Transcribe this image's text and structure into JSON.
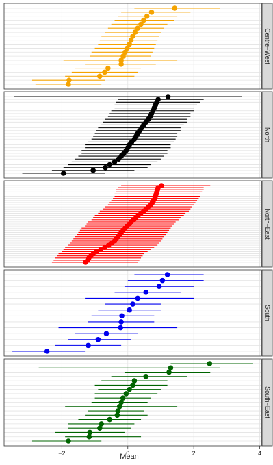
{
  "chart_data": {
    "type": "scatter",
    "subtype": "faceted dot plot with horizontal interval bars",
    "xlabel": "Mean",
    "xlim": [
      -3.75,
      4.05
    ],
    "x_ticks": [
      -2,
      0,
      2,
      4
    ],
    "x_tick_labels": [
      "−2",
      "0",
      "2",
      "4"
    ],
    "grid": true,
    "facets": [
      {
        "name": "Centre−West",
        "color": "#f5a300",
        "points": [
          {
            "mean": 1.42,
            "lo": 0.2,
            "hi": 2.8
          },
          {
            "mean": 0.72,
            "lo": -0.2,
            "hi": 1.9
          },
          {
            "mean": 0.58,
            "lo": -0.3,
            "hi": 1.5
          },
          {
            "mean": 0.48,
            "lo": -0.4,
            "hi": 1.4
          },
          {
            "mean": 0.4,
            "lo": -0.5,
            "hi": 1.2
          },
          {
            "mean": 0.3,
            "lo": -0.6,
            "hi": 1.1
          },
          {
            "mean": 0.22,
            "lo": -0.7,
            "hi": 1.0
          },
          {
            "mean": 0.15,
            "lo": -0.8,
            "hi": 0.95
          },
          {
            "mean": 0.1,
            "lo": -0.85,
            "hi": 0.9
          },
          {
            "mean": 0.05,
            "lo": -0.9,
            "hi": 0.85
          },
          {
            "mean": -0.02,
            "lo": -1.0,
            "hi": 0.8
          },
          {
            "mean": -0.08,
            "lo": -1.1,
            "hi": 0.75
          },
          {
            "mean": -0.14,
            "lo": -1.15,
            "hi": 0.7
          },
          {
            "mean": -0.2,
            "lo": -1.95,
            "hi": 1.5
          },
          {
            "mean": -0.2,
            "lo": -1.3,
            "hi": 0.85
          },
          {
            "mean": -0.6,
            "lo": -1.6,
            "hi": 0.4
          },
          {
            "mean": -0.7,
            "lo": -1.7,
            "hi": 0.3
          },
          {
            "mean": -0.85,
            "lo": -1.9,
            "hi": 0.2
          },
          {
            "mean": -1.78,
            "lo": -2.9,
            "hi": -0.7
          },
          {
            "mean": -1.8,
            "lo": -2.8,
            "hi": -0.8
          }
        ]
      },
      {
        "name": "North",
        "color": "#000000",
        "points": [
          {
            "mean": 1.22,
            "lo": -3.45,
            "hi": 3.45
          },
          {
            "mean": 0.92,
            "lo": -0.3,
            "hi": 2.3
          },
          {
            "mean": 0.88,
            "lo": -0.35,
            "hi": 2.2
          },
          {
            "mean": 0.84,
            "lo": -0.4,
            "hi": 2.1
          },
          {
            "mean": 0.8,
            "lo": -0.4,
            "hi": 2.0
          },
          {
            "mean": 0.76,
            "lo": -0.5,
            "hi": 2.0
          },
          {
            "mean": 0.72,
            "lo": -0.55,
            "hi": 1.9
          },
          {
            "mean": 0.68,
            "lo": -0.6,
            "hi": 1.9
          },
          {
            "mean": 0.62,
            "lo": -0.7,
            "hi": 1.8
          },
          {
            "mean": 0.55,
            "lo": -0.75,
            "hi": 1.8
          },
          {
            "mean": 0.48,
            "lo": -0.8,
            "hi": 1.7
          },
          {
            "mean": 0.42,
            "lo": -0.9,
            "hi": 1.6
          },
          {
            "mean": 0.36,
            "lo": -0.95,
            "hi": 1.6
          },
          {
            "mean": 0.3,
            "lo": -1.0,
            "hi": 1.5
          },
          {
            "mean": 0.25,
            "lo": -1.05,
            "hi": 1.5
          },
          {
            "mean": 0.2,
            "lo": -1.1,
            "hi": 1.45
          },
          {
            "mean": 0.12,
            "lo": -1.2,
            "hi": 1.4
          },
          {
            "mean": 0.05,
            "lo": -1.3,
            "hi": 1.3
          },
          {
            "mean": 0.0,
            "lo": -1.3,
            "hi": 1.3
          },
          {
            "mean": -0.05,
            "lo": -1.4,
            "hi": 1.2
          },
          {
            "mean": -0.12,
            "lo": -1.4,
            "hi": 1.2
          },
          {
            "mean": -0.2,
            "lo": -1.5,
            "hi": 1.1
          },
          {
            "mean": -0.28,
            "lo": -1.6,
            "hi": 1.0
          },
          {
            "mean": -0.4,
            "lo": -1.7,
            "hi": 0.9
          },
          {
            "mean": -0.55,
            "lo": -1.8,
            "hi": 0.7
          },
          {
            "mean": -0.68,
            "lo": -1.95,
            "hi": 0.6
          },
          {
            "mean": -1.05,
            "lo": -2.3,
            "hi": 0.2
          },
          {
            "mean": -1.95,
            "lo": -3.2,
            "hi": -0.7
          }
        ]
      },
      {
        "name": "North−East",
        "color": "#ff0000",
        "points": [
          {
            "mean": 1.02,
            "lo": -0.2,
            "hi": 2.5
          },
          {
            "mean": 0.92,
            "lo": -0.3,
            "hi": 2.3
          },
          {
            "mean": 0.9,
            "lo": -0.35,
            "hi": 2.3
          },
          {
            "mean": 0.88,
            "lo": -0.35,
            "hi": 2.25
          },
          {
            "mean": 0.86,
            "lo": -0.4,
            "hi": 2.2
          },
          {
            "mean": 0.84,
            "lo": -0.4,
            "hi": 2.2
          },
          {
            "mean": 0.82,
            "lo": -0.45,
            "hi": 2.15
          },
          {
            "mean": 0.78,
            "lo": -0.5,
            "hi": 2.1
          },
          {
            "mean": 0.74,
            "lo": -0.55,
            "hi": 2.05
          },
          {
            "mean": 0.7,
            "lo": -0.6,
            "hi": 2.0
          },
          {
            "mean": 0.62,
            "lo": -0.7,
            "hi": 1.95
          },
          {
            "mean": 0.55,
            "lo": -0.75,
            "hi": 1.9
          },
          {
            "mean": 0.48,
            "lo": -0.85,
            "hi": 1.85
          },
          {
            "mean": 0.4,
            "lo": -0.9,
            "hi": 1.75
          },
          {
            "mean": 0.32,
            "lo": -1.0,
            "hi": 1.7
          },
          {
            "mean": 0.25,
            "lo": -1.05,
            "hi": 1.6
          },
          {
            "mean": 0.18,
            "lo": -1.1,
            "hi": 1.55
          },
          {
            "mean": 0.1,
            "lo": -1.2,
            "hi": 1.45
          },
          {
            "mean": 0.05,
            "lo": -1.25,
            "hi": 1.4
          },
          {
            "mean": -0.02,
            "lo": -1.3,
            "hi": 1.35
          },
          {
            "mean": -0.08,
            "lo": -1.4,
            "hi": 1.3
          },
          {
            "mean": -0.14,
            "lo": -1.45,
            "hi": 1.25
          },
          {
            "mean": -0.2,
            "lo": -1.5,
            "hi": 1.2
          },
          {
            "mean": -0.25,
            "lo": -1.55,
            "hi": 1.15
          },
          {
            "mean": -0.3,
            "lo": -1.6,
            "hi": 1.1
          },
          {
            "mean": -0.35,
            "lo": -1.65,
            "hi": 1.05
          },
          {
            "mean": -0.4,
            "lo": -1.7,
            "hi": 1.0
          },
          {
            "mean": -0.48,
            "lo": -1.75,
            "hi": 0.95
          },
          {
            "mean": -0.58,
            "lo": -1.8,
            "hi": 0.9
          },
          {
            "mean": -0.7,
            "lo": -1.9,
            "hi": 0.8
          },
          {
            "mean": -0.82,
            "lo": -1.95,
            "hi": 0.7
          },
          {
            "mean": -0.95,
            "lo": -2.0,
            "hi": 0.6
          },
          {
            "mean": -1.05,
            "lo": -2.1,
            "hi": 0.5
          },
          {
            "mean": -1.12,
            "lo": -2.15,
            "hi": 0.45
          },
          {
            "mean": -1.18,
            "lo": -2.2,
            "hi": 0.4
          },
          {
            "mean": -1.22,
            "lo": -2.25,
            "hi": 0.35
          },
          {
            "mean": -1.28,
            "lo": -2.3,
            "hi": 0.3
          }
        ]
      },
      {
        "name": "South",
        "color": "#0000ee",
        "points": [
          {
            "mean": 1.2,
            "lo": 0.2,
            "hi": 2.3
          },
          {
            "mean": 1.05,
            "lo": 0.0,
            "hi": 2.3
          },
          {
            "mean": 0.95,
            "lo": -0.1,
            "hi": 2.0
          },
          {
            "mean": 0.55,
            "lo": -0.4,
            "hi": 1.6
          },
          {
            "mean": 0.3,
            "lo": -1.3,
            "hi": 2.0
          },
          {
            "mean": 0.15,
            "lo": -0.7,
            "hi": 1.0
          },
          {
            "mean": 0.05,
            "lo": -0.9,
            "hi": 1.0
          },
          {
            "mean": -0.18,
            "lo": -1.1,
            "hi": 0.8
          },
          {
            "mean": -0.2,
            "lo": -1.2,
            "hi": 0.8
          },
          {
            "mean": -0.22,
            "lo": -2.1,
            "hi": 1.5
          },
          {
            "mean": -0.65,
            "lo": -1.6,
            "hi": 0.3
          },
          {
            "mean": -0.9,
            "lo": -1.8,
            "hi": 0.1
          },
          {
            "mean": -1.2,
            "lo": -2.2,
            "hi": -0.2
          },
          {
            "mean": -2.45,
            "lo": -3.5,
            "hi": -1.3
          }
        ]
      },
      {
        "name": "South−East",
        "color": "#006400",
        "points": [
          {
            "mean": 2.48,
            "lo": 1.3,
            "hi": 3.8
          },
          {
            "mean": 1.3,
            "lo": -2.7,
            "hi": 2.8
          },
          {
            "mean": 1.25,
            "lo": -0.1,
            "hi": 2.5
          },
          {
            "mean": 0.55,
            "lo": -0.5,
            "hi": 1.8
          },
          {
            "mean": 0.2,
            "lo": -0.8,
            "hi": 1.2
          },
          {
            "mean": 0.15,
            "lo": -1.0,
            "hi": 1.2
          },
          {
            "mean": 0.05,
            "lo": -0.9,
            "hi": 1.0
          },
          {
            "mean": -0.05,
            "lo": -1.0,
            "hi": 0.9
          },
          {
            "mean": -0.15,
            "lo": -1.0,
            "hi": 0.7
          },
          {
            "mean": -0.2,
            "lo": -1.1,
            "hi": 0.6
          },
          {
            "mean": -0.25,
            "lo": -1.9,
            "hi": 1.5
          },
          {
            "mean": -0.3,
            "lo": -1.2,
            "hi": 0.5
          },
          {
            "mean": -0.32,
            "lo": -1.3,
            "hi": 0.6
          },
          {
            "mean": -0.55,
            "lo": -1.5,
            "hi": 0.4
          },
          {
            "mean": -0.8,
            "lo": -1.8,
            "hi": 0.2
          },
          {
            "mean": -0.85,
            "lo": -1.8,
            "hi": 0.1
          },
          {
            "mean": -1.15,
            "lo": -2.2,
            "hi": -0.1
          },
          {
            "mean": -1.17,
            "lo": -1.9,
            "hi": 0.4
          },
          {
            "mean": -1.8,
            "lo": -2.9,
            "hi": -0.8
          }
        ]
      }
    ]
  }
}
